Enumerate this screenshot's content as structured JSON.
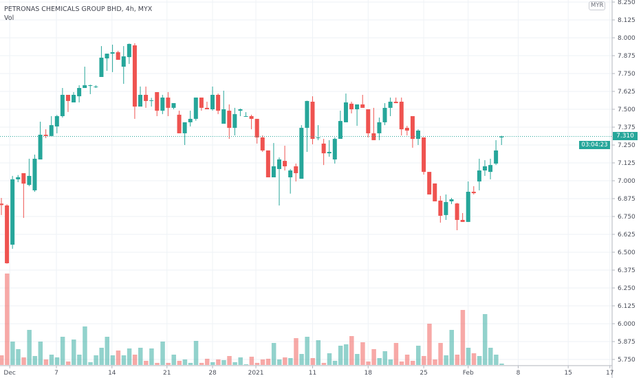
{
  "legend": {
    "title": "PETRONAS CHEMICALS GROUP BHD, 4h, MYX",
    "volume_label": "Vol"
  },
  "price_axis": {
    "currency": "MYR",
    "last_price": "7.310",
    "countdown": "03:04:23"
  },
  "colors": {
    "up": "#26a69a",
    "down": "#ef5350",
    "grid": "#eef2f6",
    "price_line": "#26a69a"
  },
  "chart_data": {
    "type": "candlestick",
    "title": "PETRONAS CHEMICALS GROUP BHD, 4h, MYX",
    "interval": "4h",
    "y_ticks": [
      "8.250",
      "8.125",
      "8.000",
      "7.875",
      "7.750",
      "7.625",
      "7.500",
      "7.375",
      "7.250",
      "7.125",
      "7.000",
      "6.875",
      "6.750",
      "6.625",
      "6.500",
      "6.375",
      "6.250",
      "6.125",
      "6.000",
      "5.875",
      "5.750"
    ],
    "ylim": [
      5.7,
      8.27
    ],
    "x_ticks": [
      "Dec",
      "7",
      "14",
      "21",
      "28",
      "2021",
      "11",
      "18",
      "25",
      "Feb",
      "8",
      "15",
      "17"
    ],
    "grid": true,
    "volume_units": "relative",
    "candle_fields": [
      "open",
      "high",
      "low",
      "close",
      "volume"
    ],
    "candles": [
      [
        6.84,
        6.88,
        6.76,
        6.83,
        14
      ],
      [
        6.827,
        6.835,
        6.42,
        6.423,
        133
      ],
      [
        6.553,
        7.034,
        6.524,
        7.01,
        34
      ],
      [
        7.01,
        7.04,
        6.99,
        7.025,
        23
      ],
      [
        7.053,
        7.053,
        6.74,
        6.98,
        11
      ],
      [
        6.971,
        7.154,
        6.962,
        7.034,
        51
      ],
      [
        6.933,
        7.183,
        6.923,
        7.154,
        13
      ],
      [
        7.149,
        7.413,
        7.149,
        7.322,
        34
      ],
      [
        7.322,
        7.36,
        7.298,
        7.313,
        8
      ],
      [
        7.313,
        7.452,
        7.313,
        7.389,
        15
      ],
      [
        7.38,
        7.46,
        7.332,
        7.452,
        11
      ],
      [
        7.452,
        7.649,
        7.442,
        7.601,
        41
      ],
      [
        7.601,
        7.601,
        7.481,
        7.558,
        5
      ],
      [
        7.548,
        7.62,
        7.548,
        7.601,
        37
      ],
      [
        7.591,
        7.668,
        7.548,
        7.649,
        15
      ],
      [
        7.649,
        7.798,
        7.649,
        7.668,
        56
      ],
      [
        7.664,
        7.672,
        7.606,
        7.668,
        4
      ],
      [
        7.656,
        7.668,
        7.649,
        7.659,
        14
      ],
      [
        7.726,
        7.942,
        7.726,
        7.861,
        25
      ],
      [
        7.856,
        7.889,
        7.769,
        7.889,
        41
      ],
      [
        7.889,
        7.952,
        7.76,
        7.899,
        14
      ],
      [
        7.899,
        7.909,
        7.846,
        7.846,
        21
      ],
      [
        7.798,
        7.942,
        7.678,
        7.87,
        14
      ],
      [
        7.865,
        7.96,
        7.817,
        7.957,
        24
      ],
      [
        7.947,
        7.962,
        7.433,
        7.519,
        15
      ],
      [
        7.519,
        7.659,
        7.519,
        7.601,
        25
      ],
      [
        7.601,
        7.659,
        7.51,
        7.558,
        6
      ],
      [
        7.56,
        7.58,
        7.519,
        7.563,
        24
      ],
      [
        7.62,
        7.62,
        7.452,
        7.49,
        3
      ],
      [
        7.49,
        7.601,
        7.466,
        7.582,
        34
      ],
      [
        7.582,
        7.62,
        7.452,
        7.51,
        3
      ],
      [
        7.51,
        7.543,
        7.5,
        7.543,
        15
      ],
      [
        7.462,
        7.49,
        7.332,
        7.332,
        6
      ],
      [
        7.332,
        7.409,
        7.25,
        7.409,
        8
      ],
      [
        7.409,
        7.49,
        7.38,
        7.433,
        3
      ],
      [
        7.433,
        7.582,
        7.42,
        7.582,
        35
      ],
      [
        7.582,
        7.582,
        7.49,
        7.51,
        3
      ],
      [
        7.51,
        7.553,
        7.5,
        7.5,
        9
      ],
      [
        7.5,
        7.659,
        7.49,
        7.601,
        4
      ],
      [
        7.601,
        7.61,
        7.466,
        7.49,
        8
      ],
      [
        7.399,
        7.63,
        7.399,
        7.5,
        7
      ],
      [
        7.49,
        7.534,
        7.293,
        7.37,
        13
      ],
      [
        7.37,
        7.51,
        7.317,
        7.466,
        4
      ],
      [
        7.49,
        7.505,
        7.452,
        7.5,
        11
      ],
      [
        7.45,
        7.48,
        7.45,
        7.452,
        1
      ],
      [
        7.452,
        7.462,
        7.36,
        7.433,
        12
      ],
      [
        7.433,
        7.433,
        7.26,
        7.303,
        3
      ],
      [
        7.303,
        7.317,
        7.202,
        7.212,
        8
      ],
      [
        7.212,
        7.212,
        7.024,
        7.024,
        9
      ],
      [
        7.024,
        7.264,
        7.024,
        7.101,
        32
      ],
      [
        7.082,
        7.163,
        6.827,
        7.149,
        8
      ],
      [
        7.139,
        7.245,
        7.072,
        7.101,
        11
      ],
      [
        7.024,
        7.082,
        6.91,
        7.072,
        10
      ],
      [
        7.101,
        7.12,
        6.995,
        7.053,
        39
      ],
      [
        7.014,
        7.389,
        7.014,
        7.37,
        16
      ],
      [
        7.37,
        7.56,
        7.202,
        7.558,
        41
      ],
      [
        7.553,
        7.591,
        7.255,
        7.293,
        10
      ],
      [
        7.303,
        7.389,
        7.284,
        7.303,
        36
      ],
      [
        7.26,
        7.293,
        7.11,
        7.192,
        3
      ],
      [
        7.192,
        7.284,
        7.168,
        7.202,
        17
      ],
      [
        7.149,
        7.303,
        7.12,
        7.293,
        6
      ],
      [
        7.293,
        7.49,
        7.293,
        7.418,
        28
      ],
      [
        7.409,
        7.61,
        7.409,
        7.548,
        30
      ],
      [
        7.539,
        7.553,
        7.471,
        7.5,
        42
      ],
      [
        7.5,
        7.534,
        7.384,
        7.534,
        16
      ],
      [
        7.534,
        7.601,
        7.51,
        7.51,
        33
      ],
      [
        7.5,
        7.5,
        7.303,
        7.332,
        5
      ],
      [
        7.332,
        7.51,
        7.284,
        7.284,
        23
      ],
      [
        7.332,
        7.442,
        7.284,
        7.409,
        10
      ],
      [
        7.409,
        7.543,
        7.389,
        7.51,
        20
      ],
      [
        7.51,
        7.582,
        7.452,
        7.553,
        8
      ],
      [
        7.553,
        7.582,
        7.543,
        7.543,
        32
      ],
      [
        7.553,
        7.582,
        7.317,
        7.36,
        5
      ],
      [
        7.37,
        7.384,
        7.317,
        7.351,
        15
      ],
      [
        7.452,
        7.452,
        7.231,
        7.293,
        6
      ],
      [
        7.293,
        7.36,
        7.25,
        7.351,
        28
      ],
      [
        7.303,
        7.303,
        7.043,
        7.062,
        13
      ],
      [
        7.062,
        7.062,
        6.904,
        6.904,
        60
      ],
      [
        6.981,
        6.981,
        6.856,
        6.856,
        8
      ],
      [
        6.861,
        6.894,
        6.707,
        6.755,
        32
      ],
      [
        6.76,
        6.904,
        6.726,
        6.851,
        14
      ],
      [
        6.856,
        6.88,
        6.837,
        6.87,
        51
      ],
      [
        6.841,
        6.845,
        6.654,
        6.726,
        15
      ],
      [
        6.726,
        6.774,
        6.712,
        6.712,
        80
      ],
      [
        6.712,
        6.995,
        6.712,
        6.923,
        25
      ],
      [
        6.923,
        6.962,
        6.904,
        6.913,
        17
      ],
      [
        6.995,
        7.154,
        6.933,
        7.072,
        13
      ],
      [
        7.072,
        7.144,
        7.034,
        7.101,
        74
      ],
      [
        7.062,
        7.154,
        7.01,
        7.11,
        25
      ],
      [
        7.12,
        7.284,
        7.11,
        7.212,
        15
      ],
      [
        7.303,
        7.315,
        7.25,
        7.31,
        2
      ]
    ]
  }
}
